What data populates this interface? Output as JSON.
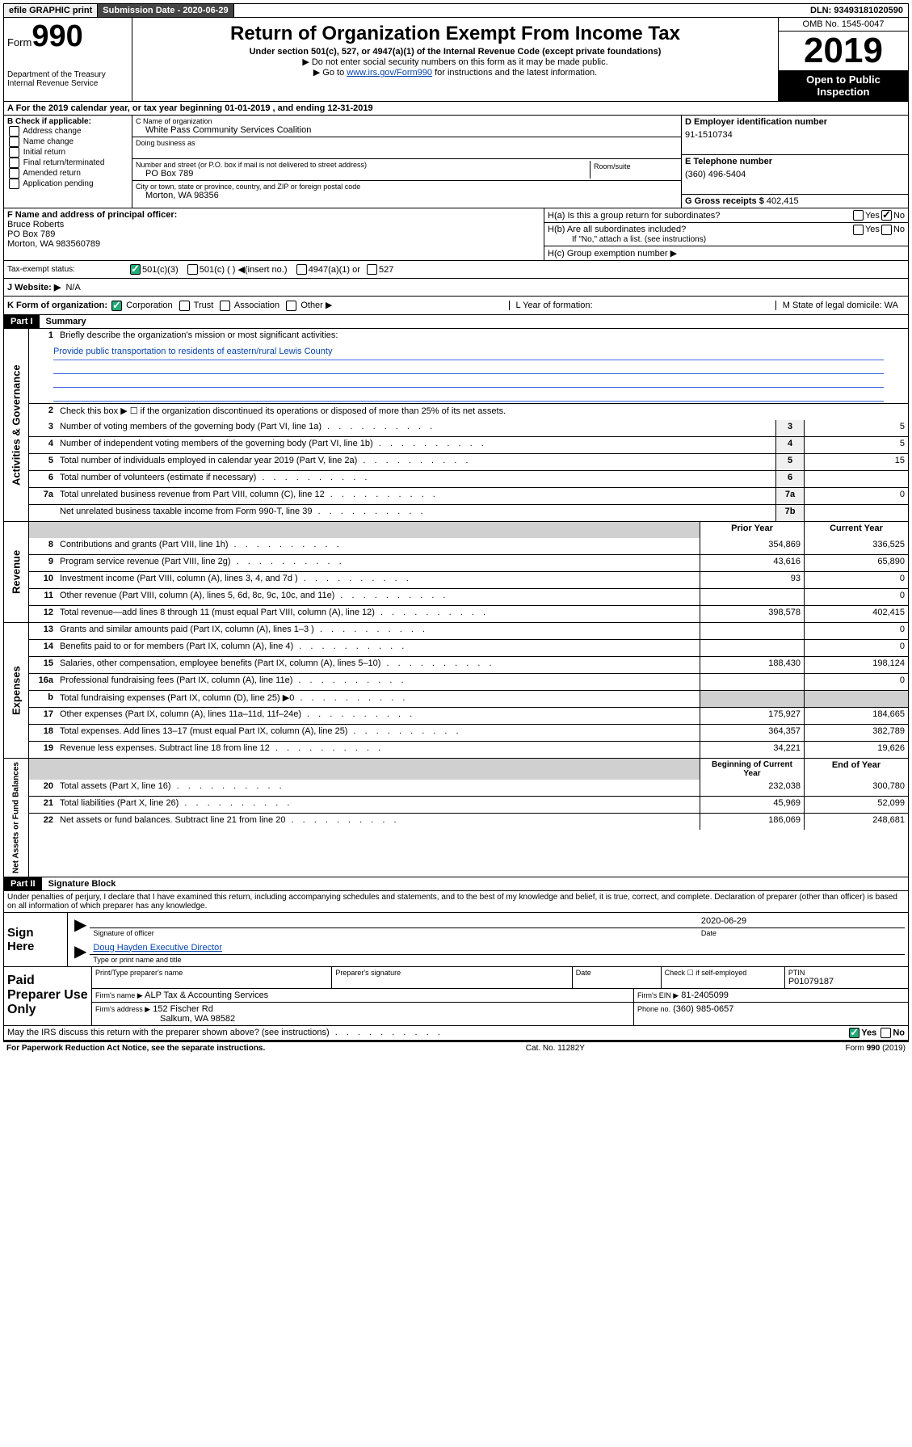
{
  "topbar": {
    "efile": "efile GRAPHIC print",
    "submission_label": "Submission Date - 2020-06-29",
    "dln": "DLN: 93493181020590"
  },
  "header": {
    "form_prefix": "Form",
    "form_number": "990",
    "dept": "Department of the Treasury",
    "irs": "Internal Revenue Service",
    "title": "Return of Organization Exempt From Income Tax",
    "subtitle": "Under section 501(c), 527, or 4947(a)(1) of the Internal Revenue Code (except private foundations)",
    "note1": "▶ Do not enter social security numbers on this form as it may be made public.",
    "note2_pre": "▶ Go to ",
    "note2_link": "www.irs.gov/Form990",
    "note2_post": " for instructions and the latest information.",
    "omb": "OMB No. 1545-0047",
    "year": "2019",
    "open": "Open to Public Inspection"
  },
  "rowA": "A For the 2019 calendar year, or tax year beginning 01-01-2019   , and ending 12-31-2019",
  "B": {
    "label": "B Check if applicable:",
    "items": [
      "Address change",
      "Name change",
      "Initial return",
      "Final return/terminated",
      "Amended return",
      "Application pending"
    ]
  },
  "C": {
    "name_label": "C Name of organization",
    "name": "White Pass Community Services Coalition",
    "dba_label": "Doing business as",
    "addr_label": "Number and street (or P.O. box if mail is not delivered to street address)",
    "room_label": "Room/suite",
    "addr": "PO Box 789",
    "city_label": "City or town, state or province, country, and ZIP or foreign postal code",
    "city": "Morton, WA  98356"
  },
  "D": {
    "label": "D Employer identification number",
    "value": "91-1510734"
  },
  "E": {
    "label": "E Telephone number",
    "value": "(360) 496-5404"
  },
  "G": {
    "label": "G Gross receipts $",
    "value": "402,415"
  },
  "F": {
    "label": "F  Name and address of principal officer:",
    "name": "Bruce Roberts",
    "addr1": "PO Box 789",
    "addr2": "Morton, WA  983560789"
  },
  "H": {
    "a": "H(a)  Is this a group return for subordinates?",
    "b": "H(b)  Are all subordinates included?",
    "b_note": "If \"No,\" attach a list. (see instructions)",
    "c": "H(c)  Group exemption number ▶"
  },
  "I": {
    "label": "Tax-exempt status:",
    "opts": [
      "501(c)(3)",
      "501(c) (  ) ◀(insert no.)",
      "4947(a)(1) or",
      "527"
    ]
  },
  "J": {
    "label": "J   Website: ▶",
    "value": "N/A"
  },
  "K": {
    "label": "K Form of organization:",
    "opts": [
      "Corporation",
      "Trust",
      "Association",
      "Other ▶"
    ],
    "L_label": "L Year of formation:",
    "M_label": "M State of legal domicile: WA"
  },
  "part1": {
    "header": "Part I",
    "title": "Summary",
    "line1_label": "Briefly describe the organization's mission or most significant activities:",
    "mission": "Provide public transportation to residents of eastern/rural Lewis County",
    "line2": "Check this box ▶ ☐  if the organization discontinued its operations or disposed of more than 25% of its net assets.",
    "lines_gov": [
      {
        "n": "3",
        "t": "Number of voting members of the governing body (Part VI, line 1a)",
        "box": "3",
        "v": "5"
      },
      {
        "n": "4",
        "t": "Number of independent voting members of the governing body (Part VI, line 1b)",
        "box": "4",
        "v": "5"
      },
      {
        "n": "5",
        "t": "Total number of individuals employed in calendar year 2019 (Part V, line 2a)",
        "box": "5",
        "v": "15"
      },
      {
        "n": "6",
        "t": "Total number of volunteers (estimate if necessary)",
        "box": "6",
        "v": ""
      },
      {
        "n": "7a",
        "t": "Total unrelated business revenue from Part VIII, column (C), line 12",
        "box": "7a",
        "v": "0"
      },
      {
        "n": "",
        "t": "Net unrelated business taxable income from Form 990-T, line 39",
        "box": "7b",
        "v": ""
      }
    ],
    "prior_year": "Prior Year",
    "current_year": "Current Year",
    "lines_rev": [
      {
        "n": "8",
        "t": "Contributions and grants (Part VIII, line 1h)",
        "py": "354,869",
        "cy": "336,525"
      },
      {
        "n": "9",
        "t": "Program service revenue (Part VIII, line 2g)",
        "py": "43,616",
        "cy": "65,890"
      },
      {
        "n": "10",
        "t": "Investment income (Part VIII, column (A), lines 3, 4, and 7d )",
        "py": "93",
        "cy": "0"
      },
      {
        "n": "11",
        "t": "Other revenue (Part VIII, column (A), lines 5, 6d, 8c, 9c, 10c, and 11e)",
        "py": "",
        "cy": "0"
      },
      {
        "n": "12",
        "t": "Total revenue—add lines 8 through 11 (must equal Part VIII, column (A), line 12)",
        "py": "398,578",
        "cy": "402,415"
      }
    ],
    "lines_exp": [
      {
        "n": "13",
        "t": "Grants and similar amounts paid (Part IX, column (A), lines 1–3 )",
        "py": "",
        "cy": "0"
      },
      {
        "n": "14",
        "t": "Benefits paid to or for members (Part IX, column (A), line 4)",
        "py": "",
        "cy": "0"
      },
      {
        "n": "15",
        "t": "Salaries, other compensation, employee benefits (Part IX, column (A), lines 5–10)",
        "py": "188,430",
        "cy": "198,124"
      },
      {
        "n": "16a",
        "t": "Professional fundraising fees (Part IX, column (A), line 11e)",
        "py": "",
        "cy": "0"
      },
      {
        "n": "b",
        "t": "Total fundraising expenses (Part IX, column (D), line 25) ▶0",
        "py": "gray",
        "cy": "gray"
      },
      {
        "n": "17",
        "t": "Other expenses (Part IX, column (A), lines 11a–11d, 11f–24e)",
        "py": "175,927",
        "cy": "184,665"
      },
      {
        "n": "18",
        "t": "Total expenses. Add lines 13–17 (must equal Part IX, column (A), line 25)",
        "py": "364,357",
        "cy": "382,789"
      },
      {
        "n": "19",
        "t": "Revenue less expenses. Subtract line 18 from line 12",
        "py": "34,221",
        "cy": "19,626"
      }
    ],
    "begin_year": "Beginning of Current Year",
    "end_year": "End of Year",
    "lines_net": [
      {
        "n": "20",
        "t": "Total assets (Part X, line 16)",
        "py": "232,038",
        "cy": "300,780"
      },
      {
        "n": "21",
        "t": "Total liabilities (Part X, line 26)",
        "py": "45,969",
        "cy": "52,099"
      },
      {
        "n": "22",
        "t": "Net assets or fund balances. Subtract line 21 from line 20",
        "py": "186,069",
        "cy": "248,681"
      }
    ]
  },
  "part2": {
    "header": "Part II",
    "title": "Signature Block",
    "perjury": "Under penalties of perjury, I declare that I have examined this return, including accompanying schedules and statements, and to the best of my knowledge and belief, it is true, correct, and complete. Declaration of preparer (other than officer) is based on all information of which preparer has any knowledge."
  },
  "sign": {
    "here": "Sign Here",
    "sig_label": "Signature of officer",
    "date": "2020-06-29",
    "date_label": "Date",
    "name": "Doug Hayden  Executive Director",
    "name_label": "Type or print name and title"
  },
  "prep": {
    "title": "Paid Preparer Use Only",
    "h1": "Print/Type preparer's name",
    "h2": "Preparer's signature",
    "h3": "Date",
    "h4_a": "Check ☐ if self-employed",
    "h5": "PTIN",
    "ptin": "P01079187",
    "firm_name_label": "Firm's name   ▶",
    "firm_name": "ALP Tax & Accounting Services",
    "firm_ein_label": "Firm's EIN ▶",
    "firm_ein": "81-2405099",
    "firm_addr_label": "Firm's address ▶",
    "firm_addr1": "152 Fischer Rd",
    "firm_addr2": "Salkum, WA  98582",
    "phone_label": "Phone no.",
    "phone": "(360) 985-0657"
  },
  "discuss": "May the IRS discuss this return with the preparer shown above? (see instructions)",
  "footer": {
    "left": "For Paperwork Reduction Act Notice, see the separate instructions.",
    "mid": "Cat. No. 11282Y",
    "right": "Form 990 (2019)"
  },
  "side_labels": {
    "gov": "Activities & Governance",
    "rev": "Revenue",
    "exp": "Expenses",
    "net": "Net Assets or Fund Balances"
  }
}
